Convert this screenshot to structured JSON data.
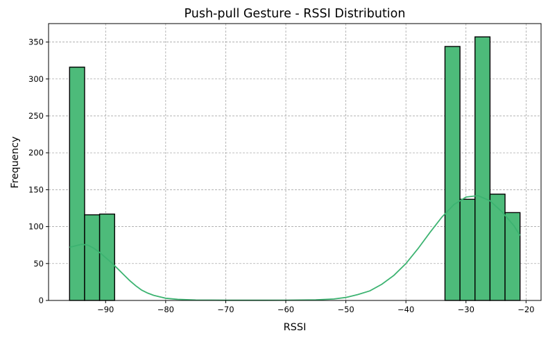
{
  "chart_data": {
    "type": "bar",
    "title": "Push-pull Gesture - RSSI Distribution",
    "xlabel": "RSSI",
    "ylabel": "Frequency",
    "xlim": [
      -99.5,
      -17.5
    ],
    "ylim": [
      0,
      375
    ],
    "grid": true,
    "bar_color": "#4dbb7a",
    "kde_color": "#3cb371",
    "edge_color": "#000000",
    "xticks": [
      -90,
      -80,
      -70,
      -60,
      -50,
      -40,
      -30,
      -20
    ],
    "xtick_labels": [
      "−90",
      "−80",
      "−70",
      "−60",
      "−50",
      "−40",
      "−30",
      "−20"
    ],
    "yticks": [
      0,
      50,
      100,
      150,
      200,
      250,
      300,
      350
    ],
    "ytick_labels": [
      "0",
      "50",
      "100",
      "150",
      "200",
      "250",
      "300",
      "350"
    ],
    "bins": [
      {
        "x0": -96.0,
        "x1": -93.5,
        "value": 316
      },
      {
        "x0": -93.5,
        "x1": -91.0,
        "value": 116
      },
      {
        "x0": -91.0,
        "x1": -88.5,
        "value": 117
      },
      {
        "x0": -88.5,
        "x1": -86.0,
        "value": 0
      },
      {
        "x0": -86.0,
        "x1": -83.5,
        "value": 0
      },
      {
        "x0": -83.5,
        "x1": -81.0,
        "value": 0
      },
      {
        "x0": -81.0,
        "x1": -78.5,
        "value": 0
      },
      {
        "x0": -78.5,
        "x1": -76.0,
        "value": 0
      },
      {
        "x0": -76.0,
        "x1": -73.5,
        "value": 0
      },
      {
        "x0": -73.5,
        "x1": -71.0,
        "value": 0
      },
      {
        "x0": -71.0,
        "x1": -68.5,
        "value": 0
      },
      {
        "x0": -68.5,
        "x1": -66.0,
        "value": 0
      },
      {
        "x0": -66.0,
        "x1": -63.5,
        "value": 0
      },
      {
        "x0": -63.5,
        "x1": -61.0,
        "value": 0
      },
      {
        "x0": -61.0,
        "x1": -58.5,
        "value": 0
      },
      {
        "x0": -58.5,
        "x1": -56.0,
        "value": 0
      },
      {
        "x0": -56.0,
        "x1": -53.5,
        "value": 0
      },
      {
        "x0": -53.5,
        "x1": -51.0,
        "value": 0
      },
      {
        "x0": -51.0,
        "x1": -48.5,
        "value": 0
      },
      {
        "x0": -48.5,
        "x1": -46.0,
        "value": 0
      },
      {
        "x0": -46.0,
        "x1": -43.5,
        "value": 0
      },
      {
        "x0": -43.5,
        "x1": -41.0,
        "value": 0
      },
      {
        "x0": -41.0,
        "x1": -38.5,
        "value": 0
      },
      {
        "x0": -38.5,
        "x1": -36.0,
        "value": 0
      },
      {
        "x0": -36.0,
        "x1": -33.5,
        "value": 0
      },
      {
        "x0": -33.5,
        "x1": -31.0,
        "value": 344
      },
      {
        "x0": -31.0,
        "x1": -28.5,
        "value": 137
      },
      {
        "x0": -28.5,
        "x1": -26.0,
        "value": 357
      },
      {
        "x0": -26.0,
        "x1": -23.5,
        "value": 144
      },
      {
        "x0": -23.5,
        "x1": -21.0,
        "value": 119
      }
    ],
    "kde_points": [
      [
        -96,
        72
      ],
      [
        -95,
        74
      ],
      [
        -94,
        76
      ],
      [
        -93,
        75
      ],
      [
        -92,
        71
      ],
      [
        -91,
        65
      ],
      [
        -90,
        58
      ],
      [
        -89,
        51
      ],
      [
        -88,
        43
      ],
      [
        -87,
        35
      ],
      [
        -86,
        27
      ],
      [
        -85,
        20
      ],
      [
        -84,
        14
      ],
      [
        -83,
        10
      ],
      [
        -82,
        7
      ],
      [
        -81,
        5
      ],
      [
        -80,
        3
      ],
      [
        -78,
        1.5
      ],
      [
        -75,
        0.6
      ],
      [
        -70,
        0.3
      ],
      [
        -65,
        0.3
      ],
      [
        -60,
        0.4
      ],
      [
        -55,
        0.8
      ],
      [
        -52,
        2
      ],
      [
        -50,
        4
      ],
      [
        -48,
        8
      ],
      [
        -46,
        13
      ],
      [
        -44,
        22
      ],
      [
        -42,
        34
      ],
      [
        -40,
        50
      ],
      [
        -38,
        70
      ],
      [
        -36,
        92
      ],
      [
        -34,
        113
      ],
      [
        -32,
        130
      ],
      [
        -30,
        140
      ],
      [
        -28,
        142
      ],
      [
        -26,
        135
      ],
      [
        -24,
        120
      ],
      [
        -22,
        101
      ],
      [
        -21,
        88
      ]
    ]
  }
}
